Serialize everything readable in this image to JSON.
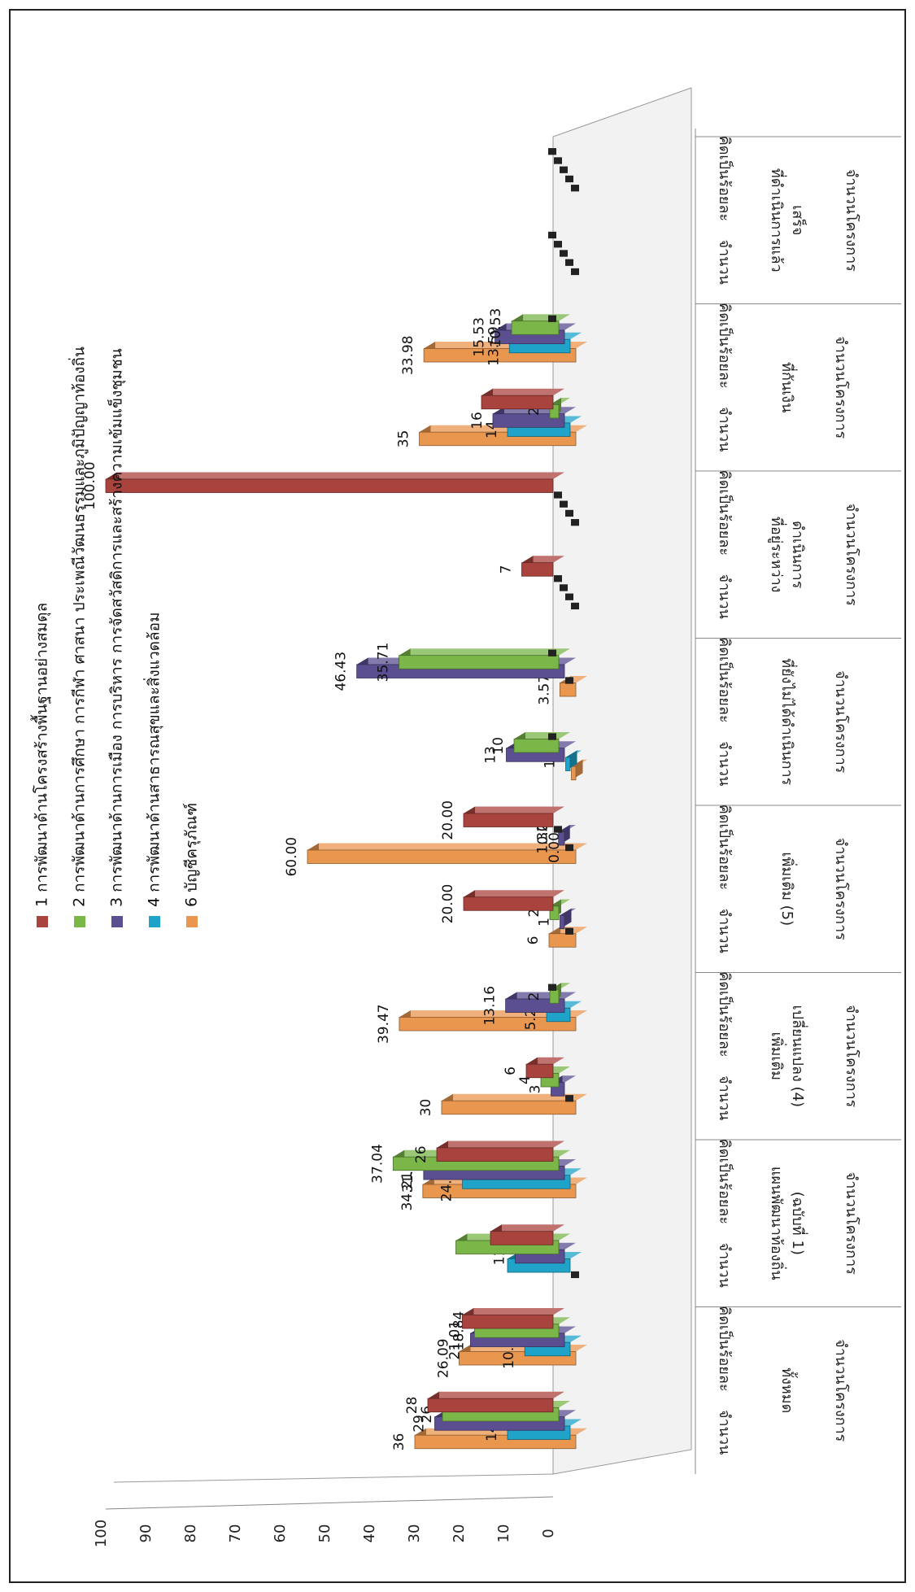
{
  "chart_data": {
    "type": "bar",
    "title": "",
    "ylim": [
      0,
      100
    ],
    "y_ticks": [
      0,
      10,
      20,
      30,
      40,
      50,
      60,
      70,
      80,
      90,
      100
    ],
    "grid": false,
    "legend_position": "top",
    "groups": [
      {
        "lines": [
          "ทั้งหมด",
          "จำนวนโครงการ"
        ],
        "sub": [
          "จำนวน",
          "คิดเป็นร้อยละ"
        ]
      },
      {
        "lines": [
          "แผนพัฒนาท้องถิ่น",
          "(ฉบับที่ 1)",
          "จำนวนโครงการ"
        ],
        "sub": [
          "จำนวน",
          "คิดเป็นร้อยละ"
        ]
      },
      {
        "lines": [
          "เพิ่มเติม",
          "เปลี่ยนแปลง (4)",
          "จำนวนโครงการ"
        ],
        "sub": [
          "จำนวน",
          "คิดเป็นร้อยละ"
        ]
      },
      {
        "lines": [
          "เพิ่มเติม (5)",
          "จำนวนโครงการ"
        ],
        "sub": [
          "จำนวน",
          "คิดเป็นร้อยละ"
        ]
      },
      {
        "lines": [
          "ที่ยังไม่ได้ดำเนินการ",
          "จำนวนโครงการ"
        ],
        "sub": [
          "จำนวน",
          "คิดเป็นร้อยละ"
        ]
      },
      {
        "lines": [
          "ที่อยู่ระหว่าง",
          "ดำเนินการ",
          "จำนวนโครงการ"
        ],
        "sub": [
          "จำนวน",
          "คิดเป็นร้อยละ"
        ]
      },
      {
        "lines": [
          "ที่กันเงิน",
          "จำนวนโครงการ"
        ],
        "sub": [
          "จำนวน",
          "คิดเป็นร้อยละ"
        ]
      },
      {
        "lines": [
          "ที่ดำเนินการแล้ว",
          "เสร็จ",
          "จำนวนโครงการ"
        ],
        "sub": [
          "จำนวน",
          "คิดเป็นร้อยละ"
        ]
      }
    ],
    "series": [
      {
        "name": "1 การพัฒนาด้านโครงสร้างพื้นฐานอย่างสมดุล",
        "color": "#a9433d",
        "values": [
          28,
          20.29,
          14,
          26,
          6,
          0,
          20,
          20.0,
          0,
          0,
          7,
          100.0,
          16,
          0
        ],
        "labels": [
          "28",
          "",
          "",
          "26",
          "6",
          "",
          "20.00",
          "20.00",
          "",
          "",
          "7",
          "100.00",
          "",
          ""
        ]
      },
      {
        "name": "2 การพัฒนาด้านการศึกษา การกีฬา ศาสนา ประเพณีวัฒนธรรมและภูมิปัญญาท้องถิ่น",
        "color": "#7ab648",
        "values": [
          26,
          18.84,
          23,
          37.04,
          4,
          2,
          2,
          0.0,
          10,
          35.71,
          0,
          0,
          2,
          10.53
        ],
        "labels": [
          "26",
          "18.84",
          "",
          "37.04",
          "4",
          "2",
          "2",
          "0.00",
          "10",
          "35.71",
          "",
          "",
          "2",
          "10.53"
        ]
      },
      {
        "name": "3 การพัฒนาด้านการเมือง การบริหาร การจัดสวัสดิการและสร้างความเข้มแข็งชุมชน",
        "color": "#5b4f91",
        "values": [
          29,
          21.01,
          11,
          31.48,
          3,
          13.16,
          1,
          1.32,
          13,
          46.43,
          0,
          0,
          16,
          15.53
        ],
        "labels": [
          "29",
          "21.01",
          "11",
          "31.48",
          "3",
          "13.16",
          "1",
          "1.32",
          "13",
          "46.43",
          "",
          "",
          "16",
          "15.53"
        ]
      },
      {
        "name": "4 การพัฒนาด้านสาธารณสุขและสิ่งแวดล้อม",
        "color": "#1fa3c8",
        "values": [
          14,
          10.14,
          14,
          24.07,
          0,
          5.26,
          0,
          0.0,
          1,
          0,
          0,
          0,
          14,
          13.59
        ],
        "labels": [
          "14",
          "10.14",
          "",
          "24.07",
          "",
          "5.26",
          "",
          "0.00",
          "1",
          "",
          "",
          "",
          "14",
          "13.59"
        ]
      },
      {
        "name": "6 บัญชีครุภัณฑ์",
        "color": "#e9964f",
        "values": [
          36,
          26.09,
          0,
          34.21,
          30,
          39.47,
          6,
          60.0,
          1,
          3.57,
          0,
          0,
          35,
          33.98
        ],
        "labels": [
          "36",
          "26.09",
          "",
          "34.21",
          "30",
          "39.47",
          "6",
          "60.00",
          "",
          "3.57",
          "",
          "",
          "35",
          "33.98"
        ]
      }
    ]
  }
}
